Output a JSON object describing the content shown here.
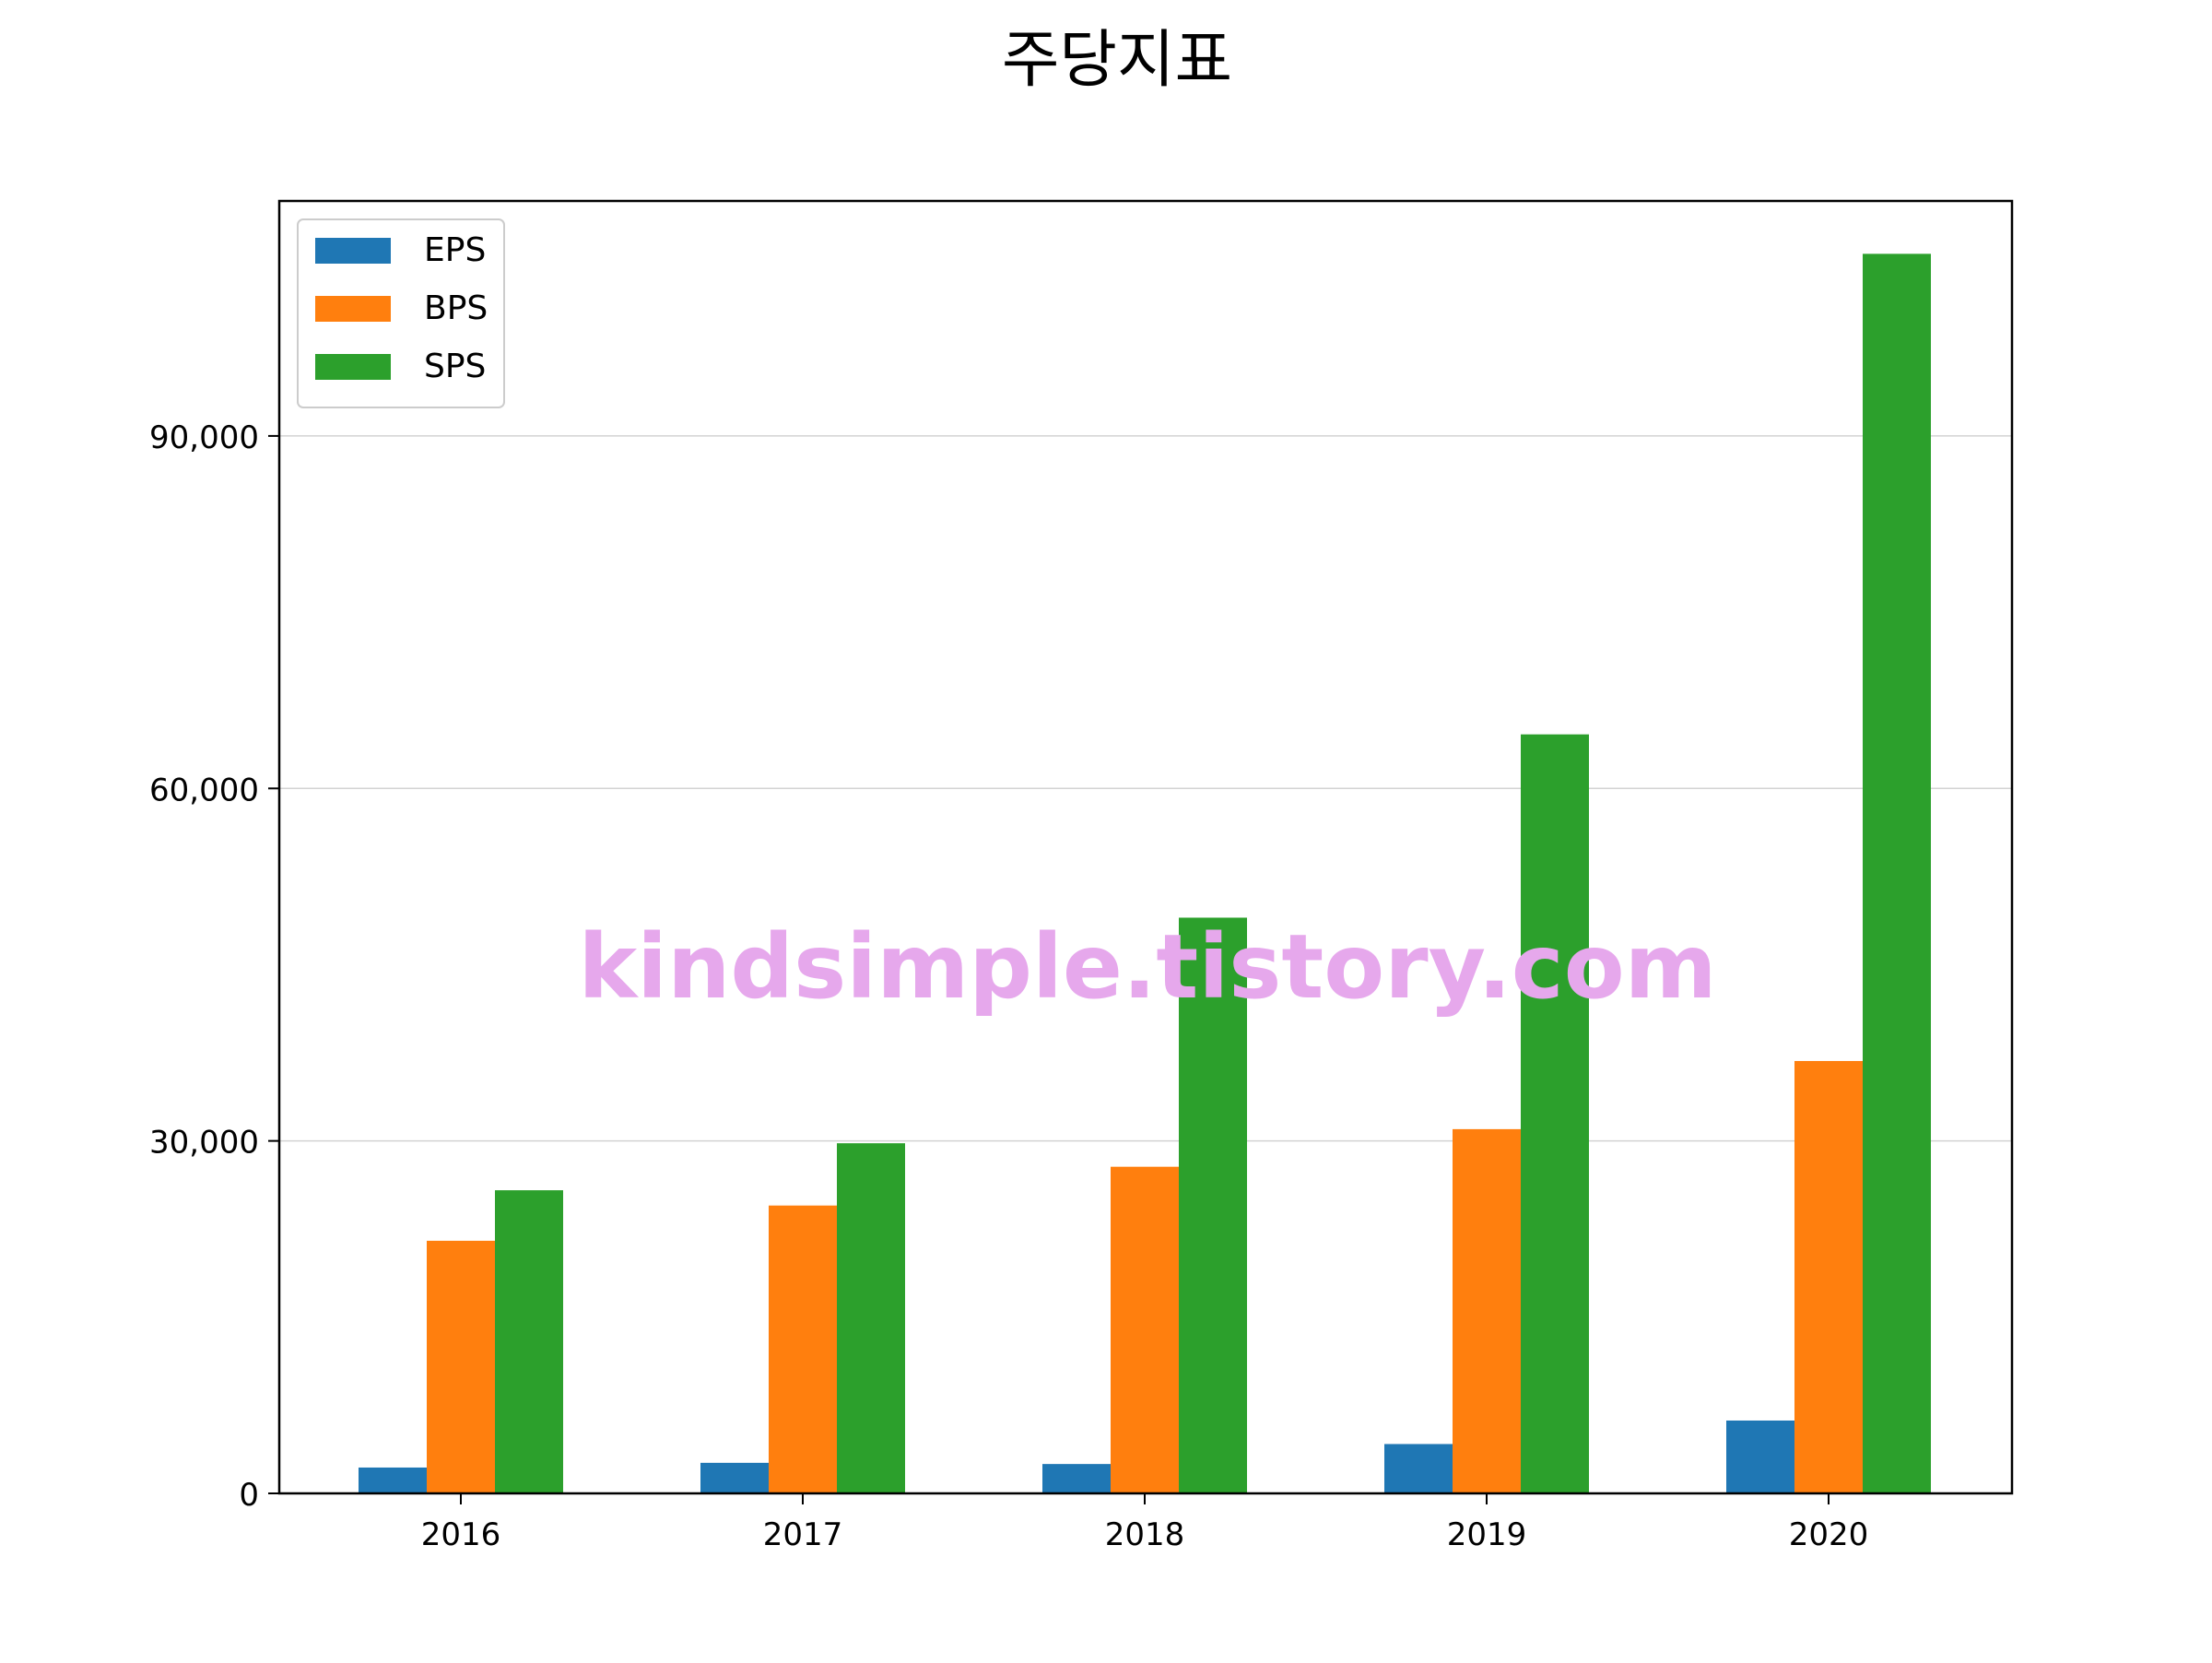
{
  "colors": {
    "EPS": "#1f77b4",
    "BPS": "#ff7f0e",
    "SPS": "#2ca02c",
    "watermark": "#e6a8ec",
    "grid": "#d3d3d3"
  },
  "chart_data": {
    "type": "bar",
    "title": "주당지표",
    "categories": [
      "2016",
      "2017",
      "2018",
      "2019",
      "2020"
    ],
    "series": [
      {
        "name": "EPS",
        "values": [
          2200,
          2600,
          2500,
          4200,
          6200
        ]
      },
      {
        "name": "BPS",
        "values": [
          21500,
          24500,
          27800,
          31000,
          36800
        ]
      },
      {
        "name": "SPS",
        "values": [
          25800,
          29800,
          49000,
          64600,
          105500
        ]
      }
    ],
    "ylim": [
      0,
      110000
    ],
    "yticks": [
      0,
      30000,
      60000,
      90000
    ],
    "ytick_labels": [
      "0",
      "30,000",
      "60,000",
      "90,000"
    ],
    "grid": "y",
    "legend": "top-left",
    "watermark": "kindsimple.tistory.com"
  }
}
